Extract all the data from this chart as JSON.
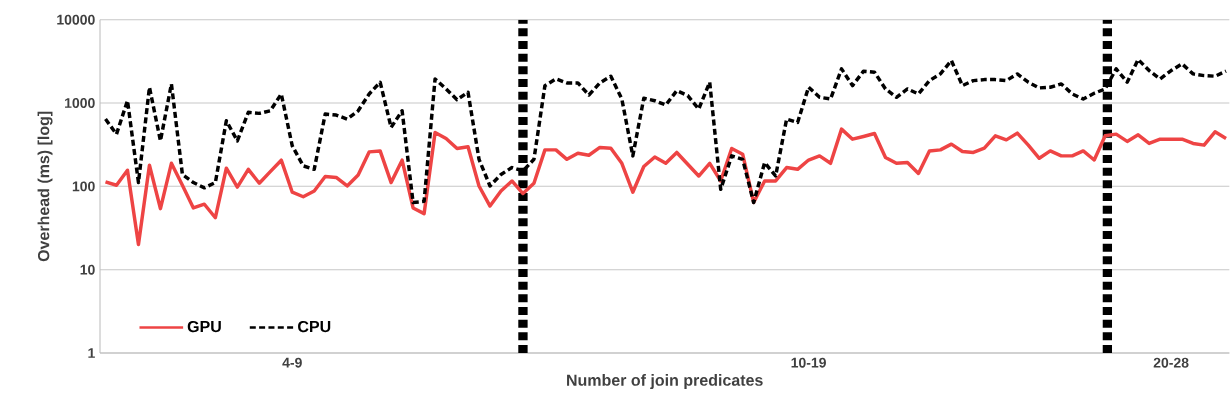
{
  "chart_data": {
    "type": "line",
    "xlabel": "Number of join predicates",
    "ylabel": "Overhead (ms) [log]",
    "categories": [
      null,
      null,
      null,
      null,
      null,
      null,
      null,
      null,
      null,
      null,
      null,
      null,
      null,
      null,
      null,
      null,
      null,
      "4-9",
      null,
      null,
      null,
      null,
      null,
      null,
      null,
      null,
      null,
      null,
      null,
      null,
      null,
      null,
      null,
      null,
      null,
      null,
      null,
      null,
      null,
      null,
      null,
      null,
      null,
      null,
      null,
      null,
      null,
      null,
      null,
      null,
      null,
      null,
      null,
      null,
      null,
      null,
      null,
      null,
      null,
      null,
      null,
      null,
      null,
      null,
      "10-19",
      null,
      null,
      null,
      null,
      null,
      null,
      null,
      null,
      null,
      null,
      null,
      null,
      null,
      null,
      null,
      null,
      null,
      null,
      null,
      null,
      null,
      null,
      null,
      null,
      null,
      null,
      null,
      null,
      null,
      null,
      null,
      null,
      "20-28",
      null,
      null,
      null,
      null,
      null
    ],
    "log": "y",
    "ylim": [
      1,
      10000
    ],
    "yticks": [
      1,
      10,
      100,
      1000,
      10000
    ],
    "grid": "y",
    "legend": "bottom left",
    "marker": "none",
    "series": [
      {
        "name": "GPU",
        "color": "#ee4444",
        "line_style": "solid",
        "values": [
          113,
          103,
          156,
          20,
          179,
          54,
          189,
          103,
          55,
          61,
          42,
          165,
          98,
          160,
          109,
          150,
          206,
          85,
          75,
          88,
          131,
          128,
          101,
          137,
          259,
          266,
          111,
          206,
          55,
          47,
          443,
          376,
          285,
          298,
          101,
          58,
          88,
          116,
          82,
          109,
          274,
          274,
          211,
          250,
          236,
          293,
          287,
          189,
          85,
          173,
          225,
          189,
          255,
          184,
          133,
          189,
          116,
          285,
          243,
          64,
          116,
          116,
          168,
          160,
          207,
          232,
          189,
          486,
          368,
          397,
          431,
          222,
          189,
          193,
          143,
          266,
          274,
          321,
          262,
          255,
          287,
          404,
          361,
          435,
          312,
          217,
          266,
          232,
          232,
          266,
          207,
          404,
          423,
          346,
          415,
          327,
          368,
          368,
          368,
          327,
          312,
          451,
          376
        ]
      },
      {
        "name": "CPU",
        "color": "#000000",
        "line_style": "dashed",
        "values": [
          641,
          423,
          1066,
          111,
          1546,
          351,
          1694,
          139,
          111,
          96,
          111,
          612,
          351,
          773,
          751,
          807,
          1283,
          306,
          176,
          160,
          737,
          717,
          641,
          807,
          1283,
          1776,
          509,
          807,
          64,
          66,
          1946,
          1475,
          1096,
          1345,
          211,
          101,
          139,
          168,
          153,
          211,
          1617,
          1946,
          1741,
          1741,
          1248,
          1741,
          2096,
          1117,
          232,
          1140,
          1066,
          946,
          1406,
          1225,
          847,
          1776,
          92,
          232,
          211,
          64,
          193,
          133,
          641,
          585,
          1546,
          1171,
          1117,
          2570,
          1617,
          2410,
          2344,
          1475,
          1171,
          1475,
          1283,
          1857,
          2235,
          3234,
          1617,
          1857,
          1909,
          1909,
          1857,
          2235,
          1776,
          1517,
          1546,
          1694,
          1283,
          1117,
          1309,
          1475,
          2570,
          1776,
          3325,
          2449,
          1946,
          2449,
          2950,
          2235,
          2133,
          2096,
          2410
        ]
      }
    ]
  }
}
